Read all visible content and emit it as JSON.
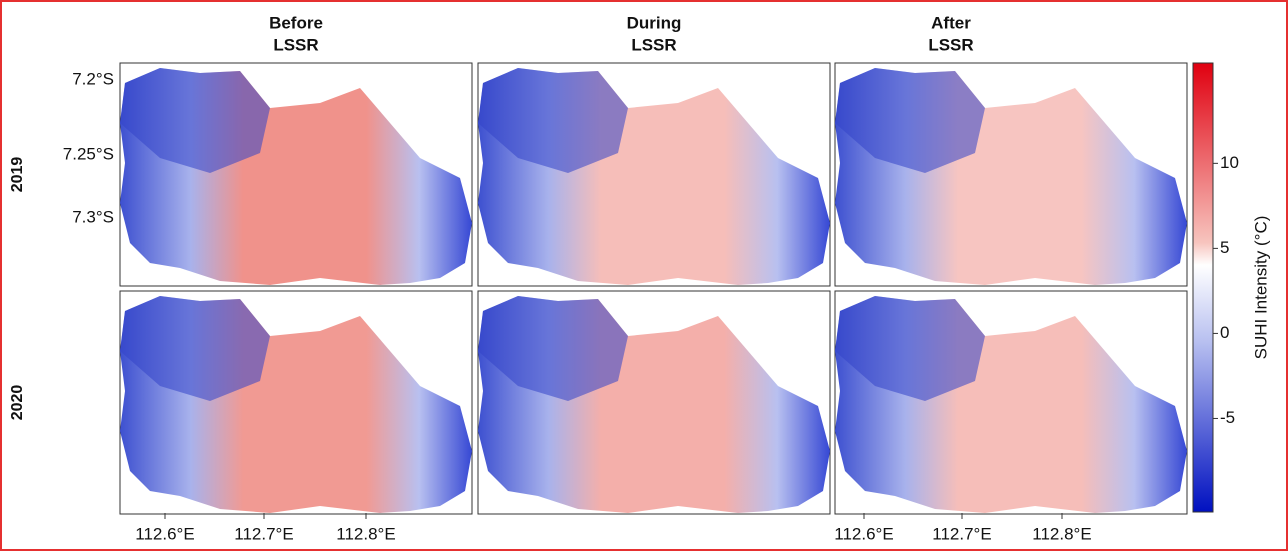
{
  "columns": [
    [
      "Before",
      "LSSR"
    ],
    [
      "During",
      "LSSR"
    ],
    [
      "After",
      "LSSR"
    ]
  ],
  "rows": [
    "2019",
    "2020"
  ],
  "lat_ticks": [
    "7.2°S",
    "7.25°S",
    "7.3°S"
  ],
  "lon_ticks": [
    "112.6°E",
    "112.7°E",
    "112.8°E"
  ],
  "colorbar": {
    "label": "SUHI Intensity (°C)",
    "lim": [
      -10.5,
      15.9
    ],
    "ticks": [
      10,
      5,
      0,
      -5
    ]
  }
}
